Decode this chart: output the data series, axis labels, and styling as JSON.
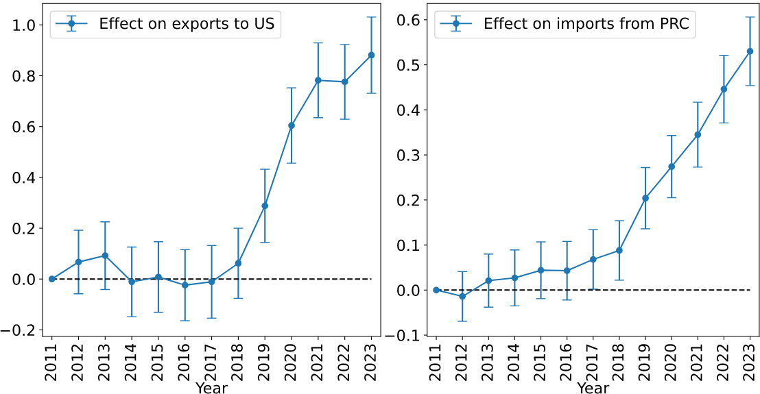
{
  "chart_data": [
    {
      "type": "line",
      "categories": [
        "2011",
        "2012",
        "2013",
        "2014",
        "2015",
        "2016",
        "2017",
        "2018",
        "2019",
        "2020",
        "2021",
        "2022",
        "2023"
      ],
      "xlabel": "Year",
      "ylim": [
        -0.226,
        1.084
      ],
      "yticks": [
        {
          "value": -0.2,
          "label": "−0.2"
        },
        {
          "value": 0.0,
          "label": "0.0"
        },
        {
          "value": 0.2,
          "label": "0.2"
        },
        {
          "value": 0.4,
          "label": "0.4"
        },
        {
          "value": 0.6,
          "label": "0.6"
        },
        {
          "value": 0.8,
          "label": "0.8"
        },
        {
          "value": 1.0,
          "label": "1.0"
        }
      ],
      "marker": "circle",
      "legend": "top left",
      "grid": false,
      "series": [
        {
          "name": "Effect on exports to US",
          "color": "#1f77b4",
          "values": [
            0,
            0.067,
            0.092,
            -0.011,
            0.008,
            -0.024,
            -0.011,
            0.062,
            0.288,
            0.604,
            0.782,
            0.776,
            0.881
          ],
          "errors": [
            null,
            0.125,
            0.133,
            0.137,
            0.139,
            0.14,
            0.143,
            0.138,
            0.144,
            0.148,
            0.147,
            0.147,
            0.15
          ]
        }
      ],
      "ref_lines": [
        {
          "axis": "y",
          "value": 0,
          "color": "#000000",
          "line_style": "dashed"
        }
      ]
    },
    {
      "type": "line",
      "categories": [
        "2011",
        "2012",
        "2013",
        "2014",
        "2015",
        "2016",
        "2017",
        "2018",
        "2019",
        "2020",
        "2021",
        "2022",
        "2023"
      ],
      "xlabel": "Year",
      "ylim": [
        -0.103,
        0.636
      ],
      "yticks": [
        {
          "value": -0.1,
          "label": "−0.1"
        },
        {
          "value": 0.0,
          "label": "0.0"
        },
        {
          "value": 0.1,
          "label": "0.1"
        },
        {
          "value": 0.2,
          "label": "0.2"
        },
        {
          "value": 0.3,
          "label": "0.3"
        },
        {
          "value": 0.4,
          "label": "0.4"
        },
        {
          "value": 0.5,
          "label": "0.5"
        },
        {
          "value": 0.6,
          "label": "0.6"
        }
      ],
      "marker": "circle",
      "legend": "top left",
      "grid": false,
      "series": [
        {
          "name": "Effect on imports from PRC",
          "color": "#1f77b4",
          "values": [
            0,
            -0.014,
            0.021,
            0.027,
            0.044,
            0.043,
            0.068,
            0.088,
            0.204,
            0.274,
            0.345,
            0.446,
            0.53
          ],
          "errors": [
            null,
            0.055,
            0.059,
            0.062,
            0.063,
            0.065,
            0.066,
            0.066,
            0.068,
            0.069,
            0.072,
            0.075,
            0.076
          ]
        }
      ],
      "ref_lines": [
        {
          "axis": "y",
          "value": 0,
          "color": "#000000",
          "line_style": "dashed"
        }
      ]
    }
  ]
}
